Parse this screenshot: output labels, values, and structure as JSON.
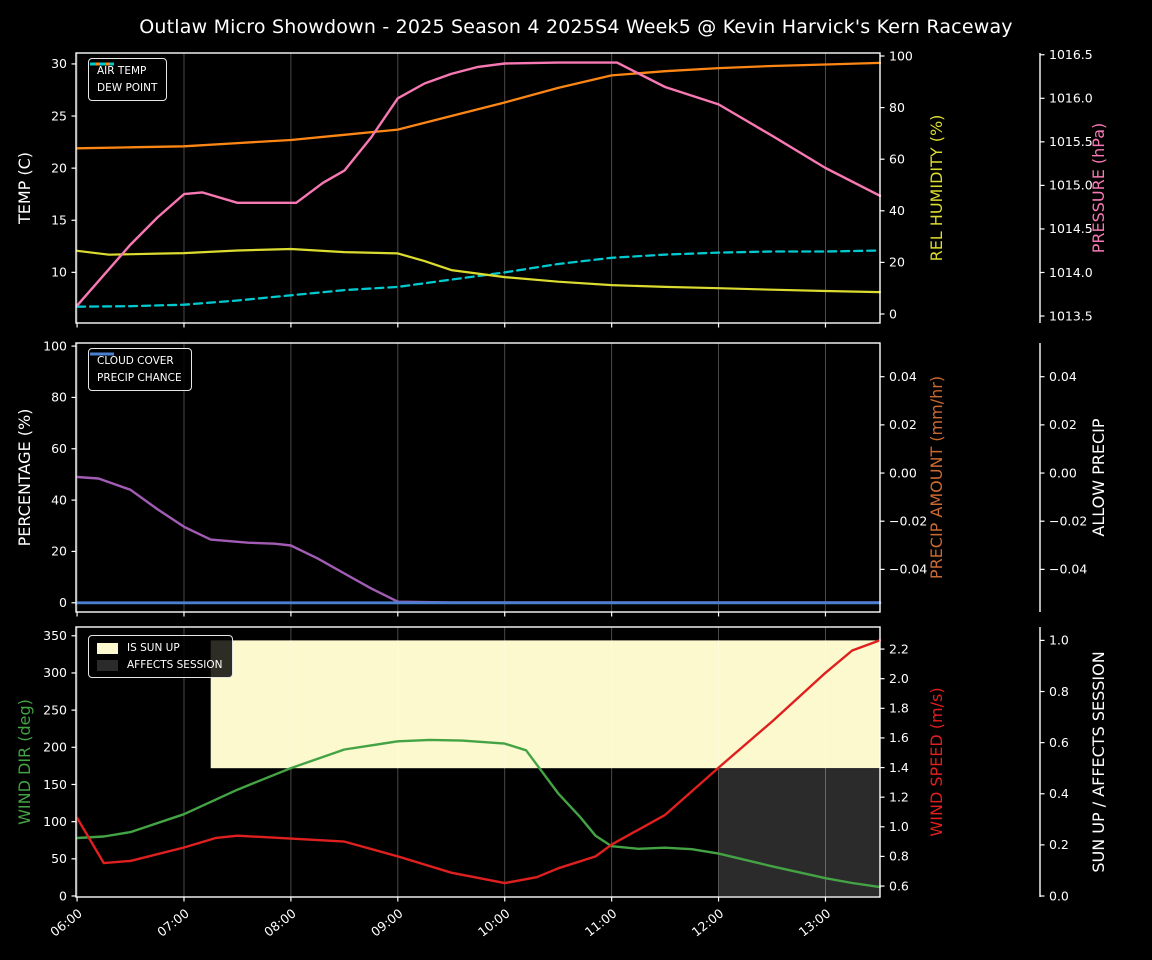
{
  "title": "Outlaw Micro Showdown - 2025 Season 4 2025S4 Week5 @ Kevin Harvick's Kern Raceway",
  "chart_data": {
    "type": "line",
    "background": "#000000",
    "grid": "vertical-hourly",
    "x_axis": {
      "range": [
        5.99,
        13.51
      ],
      "tick_hours": [
        6,
        7,
        8,
        9,
        10,
        11,
        12,
        13
      ],
      "tick_labels": [
        "06:00",
        "07:00",
        "08:00",
        "09:00",
        "10:00",
        "11:00",
        "12:00",
        "13:00"
      ]
    },
    "panels": [
      {
        "name": "temperature-humidity-pressure",
        "left_axis": {
          "label": "TEMP (C)",
          "color": "#ffffff",
          "range": [
            5.14,
            31.05
          ],
          "tick_values": [
            10,
            15,
            20,
            25,
            30
          ],
          "tick_labels": [
            "10",
            "15",
            "20",
            "25",
            "30"
          ]
        },
        "right_axes": [
          {
            "label": "REL HUMIDITY (%)",
            "color": "#dcdc30",
            "range": [
              -3.49,
              101.16
            ],
            "tick_values": [
              0,
              20,
              40,
              60,
              80,
              100
            ],
            "tick_labels": [
              "0",
              "20",
              "40",
              "60",
              "80",
              "100"
            ]
          },
          {
            "label": "PRESSURE (hPa)",
            "color": "#f878b4",
            "range": [
              1013.42,
              1016.52
            ],
            "tick_values": [
              1013.5,
              1014.0,
              1014.5,
              1015.0,
              1015.5,
              1016.0,
              1016.5
            ],
            "tick_labels": [
              "1013.5",
              "1014.0",
              "1014.5",
              "1015.0",
              "1015.5",
              "1016.0",
              "1016.5"
            ]
          }
        ],
        "series": [
          {
            "name": "AIR TEMP",
            "axis": "left",
            "color": "#fd8614",
            "dash": false,
            "width": 2.3,
            "points": [
              [
                6,
                21.9
              ],
              [
                6.5,
                22.0
              ],
              [
                7,
                22.1
              ],
              [
                7.5,
                22.4
              ],
              [
                8,
                22.7
              ],
              [
                8.5,
                23.2
              ],
              [
                9,
                23.7
              ],
              [
                9.5,
                25.0
              ],
              [
                10,
                26.3
              ],
              [
                10.5,
                27.7
              ],
              [
                11,
                28.9
              ],
              [
                11.5,
                29.3
              ],
              [
                12,
                29.6
              ],
              [
                12.5,
                29.8
              ],
              [
                13,
                29.95
              ],
              [
                13.51,
                30.1
              ]
            ]
          },
          {
            "name": "DEW POINT",
            "axis": "left",
            "color": "#00c9d0",
            "dash": true,
            "width": 2.3,
            "points": [
              [
                6,
                6.7
              ],
              [
                6.5,
                6.75
              ],
              [
                7,
                6.9
              ],
              [
                7.5,
                7.3
              ],
              [
                8,
                7.8
              ],
              [
                8.5,
                8.3
              ],
              [
                9,
                8.6
              ],
              [
                9.5,
                9.3
              ],
              [
                10,
                10.0
              ],
              [
                10.5,
                10.8
              ],
              [
                11,
                11.4
              ],
              [
                11.5,
                11.7
              ],
              [
                12,
                11.9
              ],
              [
                12.5,
                12.0
              ],
              [
                13,
                12.0
              ],
              [
                13.51,
                12.1
              ]
            ]
          },
          {
            "name": "REL HUMIDITY",
            "axis": "right0",
            "color": "#dcdc30",
            "dash": false,
            "width": 2.2,
            "points": [
              [
                6,
                24.5
              ],
              [
                6.3,
                23.0
              ],
              [
                6.75,
                23.4
              ],
              [
                7,
                23.6
              ],
              [
                7.5,
                24.6
              ],
              [
                8,
                25.2
              ],
              [
                8.5,
                24.0
              ],
              [
                9,
                23.5
              ],
              [
                9.25,
                20.5
              ],
              [
                9.5,
                17.0
              ],
              [
                10,
                14.3
              ],
              [
                10.5,
                12.5
              ],
              [
                11,
                11.2
              ],
              [
                11.5,
                10.5
              ],
              [
                12,
                10.0
              ],
              [
                12.5,
                9.4
              ],
              [
                13,
                8.9
              ],
              [
                13.51,
                8.5
              ]
            ]
          },
          {
            "name": "PRESSURE",
            "axis": "right1",
            "color": "#f878b4",
            "dash": false,
            "width": 2.4,
            "points": [
              [
                6,
                1013.62
              ],
              [
                6.25,
                1013.97
              ],
              [
                6.5,
                1014.32
              ],
              [
                6.75,
                1014.63
              ],
              [
                7,
                1014.9
              ],
              [
                7.17,
                1014.92
              ],
              [
                7.5,
                1014.8
              ],
              [
                8.05,
                1014.8
              ],
              [
                8.3,
                1015.03
              ],
              [
                8.5,
                1015.17
              ],
              [
                8.75,
                1015.55
              ],
              [
                9,
                1016.0
              ],
              [
                9.25,
                1016.17
              ],
              [
                9.5,
                1016.28
              ],
              [
                9.75,
                1016.36
              ],
              [
                10,
                1016.4
              ],
              [
                10.5,
                1016.41
              ],
              [
                11.05,
                1016.41
              ],
              [
                11.5,
                1016.13
              ],
              [
                12,
                1015.93
              ],
              [
                12.5,
                1015.57
              ],
              [
                13,
                1015.2
              ],
              [
                13.51,
                1014.88
              ]
            ]
          }
        ],
        "regions": [],
        "legend": [
          {
            "label": "AIR TEMP",
            "type": "line",
            "color": "#fd8614"
          },
          {
            "label": "DEW POINT",
            "type": "dashed-line",
            "color": "#00c9d0"
          }
        ]
      },
      {
        "name": "cloud-precip",
        "left_axis": {
          "label": "PERCENTAGE (%)",
          "color": "#ffffff",
          "range": [
            -3.6,
            101.2
          ],
          "tick_values": [
            0,
            20,
            40,
            60,
            80,
            100
          ],
          "tick_labels": [
            "0",
            "20",
            "40",
            "60",
            "80",
            "100"
          ]
        },
        "right_axes": [
          {
            "label": "PRECIP AMOUNT (mm/hr)",
            "color": "#c96a32",
            "range": [
              -0.0577,
              0.054
            ],
            "tick_values": [
              0.04,
              0.02,
              0.0,
              -0.02,
              -0.04
            ],
            "tick_labels": [
              "0.04",
              "0.02",
              "0.00",
              "−0.02",
              "−0.04"
            ]
          },
          {
            "label": "ALLOW PRECIP",
            "color": "#ffffff",
            "range": [
              -0.0577,
              0.054
            ],
            "tick_values": [
              0.04,
              0.02,
              0.0,
              -0.02,
              -0.04
            ],
            "tick_labels": [
              "0.04",
              "0.02",
              "0.00",
              "−0.02",
              "−0.04"
            ]
          }
        ],
        "series": [
          {
            "name": "CLOUD COVER",
            "axis": "left",
            "color": "#a35cb5",
            "dash": false,
            "width": 2.4,
            "points": [
              [
                6,
                49
              ],
              [
                6.2,
                48.4
              ],
              [
                6.5,
                44
              ],
              [
                6.75,
                36.5
              ],
              [
                7,
                29.6
              ],
              [
                7.25,
                24.6
              ],
              [
                7.6,
                23.4
              ],
              [
                7.85,
                23.0
              ],
              [
                8,
                22.3
              ],
              [
                8.25,
                17.3
              ],
              [
                8.5,
                11.4
              ],
              [
                8.75,
                5.6
              ],
              [
                9,
                0.4
              ],
              [
                9.5,
                0.15
              ],
              [
                10.5,
                0.15
              ],
              [
                11.5,
                0.15
              ],
              [
                12.5,
                0.15
              ],
              [
                13.51,
                0.15
              ]
            ]
          },
          {
            "name": "PRECIP CHANCE",
            "axis": "left",
            "color": "#4a7fd1",
            "dash": false,
            "width": 2.8,
            "points": [
              [
                6,
                0
              ],
              [
                13.51,
                0
              ]
            ]
          }
        ],
        "regions": [],
        "legend": [
          {
            "label": "CLOUD COVER",
            "type": "line",
            "color": "#a35cb5"
          },
          {
            "label": "PRECIP CHANCE",
            "type": "line",
            "color": "#4a7fd1"
          }
        ]
      },
      {
        "name": "wind-sun",
        "left_axis": {
          "label": "WIND DIR (deg)",
          "color": "#44a344",
          "range": [
            -1.35,
            361.8
          ],
          "tick_values": [
            0,
            50,
            100,
            150,
            200,
            250,
            300,
            350
          ],
          "tick_labels": [
            "0",
            "50",
            "100",
            "150",
            "200",
            "250",
            "300",
            "350"
          ]
        },
        "right_axes": [
          {
            "label": "WIND SPEED (m/s)",
            "color": "#e01f1f",
            "range": [
              0.526,
              2.349
            ],
            "tick_values": [
              0.6,
              0.8,
              1.0,
              1.2,
              1.4,
              1.6,
              1.8,
              2.0,
              2.2
            ],
            "tick_labels": [
              "0.6",
              "0.8",
              "1.0",
              "1.2",
              "1.4",
              "1.6",
              "1.8",
              "2.0",
              "2.2"
            ]
          },
          {
            "label": "SUN UP / AFFECTS SESSION",
            "color": "#ffffff",
            "range": [
              -0.0039,
              1.0524
            ],
            "tick_values": [
              0.0,
              0.2,
              0.4,
              0.6,
              0.8,
              1.0
            ],
            "tick_labels": [
              "0.0",
              "0.2",
              "0.4",
              "0.6",
              "0.8",
              "1.0"
            ]
          }
        ],
        "series": [
          {
            "name": "WIND DIR",
            "axis": "left",
            "color": "#44a344",
            "dash": false,
            "width": 2.4,
            "points": [
              [
                6,
                78
              ],
              [
                6.25,
                80
              ],
              [
                6.5,
                86
              ],
              [
                7,
                110
              ],
              [
                7.5,
                143
              ],
              [
                8,
                172
              ],
              [
                8.5,
                197
              ],
              [
                9,
                208
              ],
              [
                9.3,
                210
              ],
              [
                9.6,
                209
              ],
              [
                10,
                205
              ],
              [
                10.2,
                196
              ],
              [
                10.5,
                138
              ],
              [
                10.7,
                107
              ],
              [
                10.85,
                81
              ],
              [
                11,
                67
              ],
              [
                11.25,
                63.5
              ],
              [
                11.5,
                65
              ],
              [
                11.75,
                63
              ],
              [
                12,
                57
              ],
              [
                12.5,
                40
              ],
              [
                13,
                24
              ],
              [
                13.25,
                17.5
              ],
              [
                13.51,
                12
              ]
            ]
          },
          {
            "name": "WIND SPEED",
            "axis": "right0",
            "color": "#e01f1f",
            "dash": false,
            "width": 2.4,
            "points": [
              [
                6,
                1.06
              ],
              [
                6.25,
                0.755
              ],
              [
                6.5,
                0.77
              ],
              [
                7,
                0.86
              ],
              [
                7.3,
                0.925
              ],
              [
                7.5,
                0.94
              ],
              [
                8,
                0.92
              ],
              [
                8.5,
                0.9
              ],
              [
                9,
                0.8
              ],
              [
                9.5,
                0.69
              ],
              [
                10,
                0.62
              ],
              [
                10.3,
                0.66
              ],
              [
                10.5,
                0.72
              ],
              [
                10.85,
                0.8
              ],
              [
                11,
                0.88
              ],
              [
                11.5,
                1.08
              ],
              [
                12,
                1.4
              ],
              [
                12.5,
                1.71
              ],
              [
                13,
                2.04
              ],
              [
                13.25,
                2.19
              ],
              [
                13.51,
                2.26
              ]
            ]
          }
        ],
        "regions": [
          {
            "name": "IS SUN UP",
            "axis": "right1",
            "t": [
              7.25,
              13.51
            ],
            "y": [
              0.5,
              1.0
            ],
            "color": "#fbf9cd"
          },
          {
            "name": "AFFECTS SESSION",
            "axis": "right1",
            "t": [
              12.0,
              13.51
            ],
            "y": [
              0.0,
              0.5
            ],
            "color": "#2b2b2b"
          }
        ],
        "legend": [
          {
            "label": "IS SUN UP",
            "type": "patch",
            "color": "#fbf9cd"
          },
          {
            "label": "AFFECTS SESSION",
            "type": "patch",
            "color": "#2b2b2b"
          }
        ]
      }
    ]
  }
}
